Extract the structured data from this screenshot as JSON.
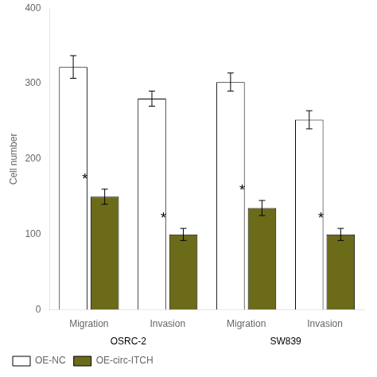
{
  "chart_data": {
    "type": "bar",
    "categories": [
      "Migration",
      "Invasion",
      "Migration",
      "Invasion"
    ],
    "category_groups": [
      {
        "name": "OSRC-2",
        "size": 2
      },
      {
        "name": "SW839",
        "size": 2
      }
    ],
    "series": [
      {
        "name": "OE-NC",
        "color": "#ffffff",
        "values": [
          322,
          280,
          302,
          252
        ],
        "errors": [
          15,
          10,
          12,
          12
        ]
      },
      {
        "name": "OE-circ-ITCH",
        "color": "#6b6b1a",
        "values": [
          150,
          100,
          135,
          100
        ],
        "errors": [
          10,
          8,
          10,
          8
        ]
      }
    ],
    "ylabel": "Cell number",
    "ylim": [
      0,
      400
    ],
    "yticks": [
      0,
      100,
      200,
      300,
      400
    ],
    "grid": false,
    "legend": "lower left",
    "annotations": [
      {
        "text": "*",
        "series": "OE-circ-ITCH",
        "index": 0
      },
      {
        "text": "*",
        "series": "OE-circ-ITCH",
        "index": 1
      },
      {
        "text": "*",
        "series": "OE-circ-ITCH",
        "index": 2
      },
      {
        "text": "*",
        "series": "OE-circ-ITCH",
        "index": 3
      }
    ]
  }
}
